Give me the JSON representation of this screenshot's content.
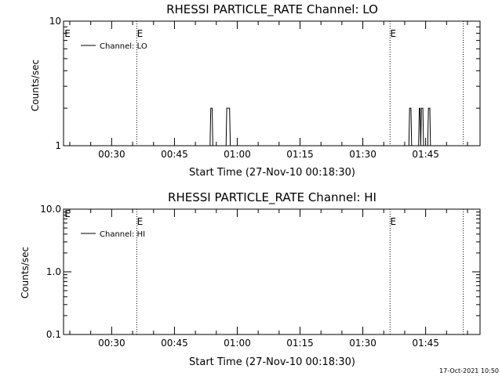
{
  "timestamp": "17-Oct-2021 10:50",
  "chart_data": [
    {
      "type": "line",
      "title": "RHESSI PARTICLE_RATE Channel: LO",
      "xlabel": "Start Time (27-Nov-10 00:18:30)",
      "ylabel": "Counts/sec",
      "yscale": "log",
      "ylim": [
        1,
        10
      ],
      "ytick_labels": [
        "1",
        "10"
      ],
      "xlim": [
        "00:18:30",
        "01:58:00"
      ],
      "xtick_labels": [
        "00:30",
        "00:45",
        "01:00",
        "01:15",
        "01:30",
        "01:45"
      ],
      "legend": "top-left",
      "series": [
        {
          "name": "Channel: LO",
          "x": [
            "00:53:30",
            "00:53:40",
            "00:53:50",
            "00:54:00",
            "00:54:10",
            "00:57:20",
            "00:57:30",
            "00:57:40",
            "00:57:50",
            "00:58:00",
            "00:58:10",
            "00:58:20",
            "01:41:00",
            "01:41:10",
            "01:41:20",
            "01:41:30",
            "01:41:40",
            "01:43:20",
            "01:43:30",
            "01:43:40",
            "01:43:50",
            "01:44:00",
            "01:44:10",
            "01:44:20",
            "01:44:30",
            "01:44:40",
            "01:45:30",
            "01:45:40",
            "01:45:50",
            "01:46:00",
            "01:46:10"
          ],
          "y": [
            1,
            2,
            2,
            2,
            1,
            1,
            2,
            2,
            2,
            2,
            2,
            1,
            1,
            2,
            2,
            2,
            1,
            1,
            2,
            2,
            1,
            2,
            2,
            2,
            1,
            1,
            1,
            2,
            2,
            2,
            1
          ]
        }
      ],
      "markers": [
        {
          "x": "00:36:00",
          "label": "E"
        },
        {
          "x": "01:36:30",
          "label": "E"
        },
        {
          "x": "01:54:00",
          "label": ""
        }
      ],
      "corner_label": "E"
    },
    {
      "type": "line",
      "title": "RHESSI PARTICLE_RATE Channel: HI",
      "xlabel": "Start Time (27-Nov-10 00:18:30)",
      "ylabel": "Counts/sec",
      "yscale": "log",
      "ylim": [
        0.1,
        10
      ],
      "ytick_labels": [
        "0.1",
        "1.0",
        "10.0"
      ],
      "xlim": [
        "00:18:30",
        "01:58:00"
      ],
      "xtick_labels": [
        "00:30",
        "00:45",
        "01:00",
        "01:15",
        "01:30",
        "01:45"
      ],
      "legend": "top-left",
      "series": [
        {
          "name": "Channel: HI",
          "x": [],
          "y": []
        }
      ],
      "markers": [
        {
          "x": "00:36:00",
          "label": "E"
        },
        {
          "x": "01:36:30",
          "label": "E"
        },
        {
          "x": "01:54:00",
          "label": ""
        }
      ],
      "corner_label": "E"
    }
  ]
}
